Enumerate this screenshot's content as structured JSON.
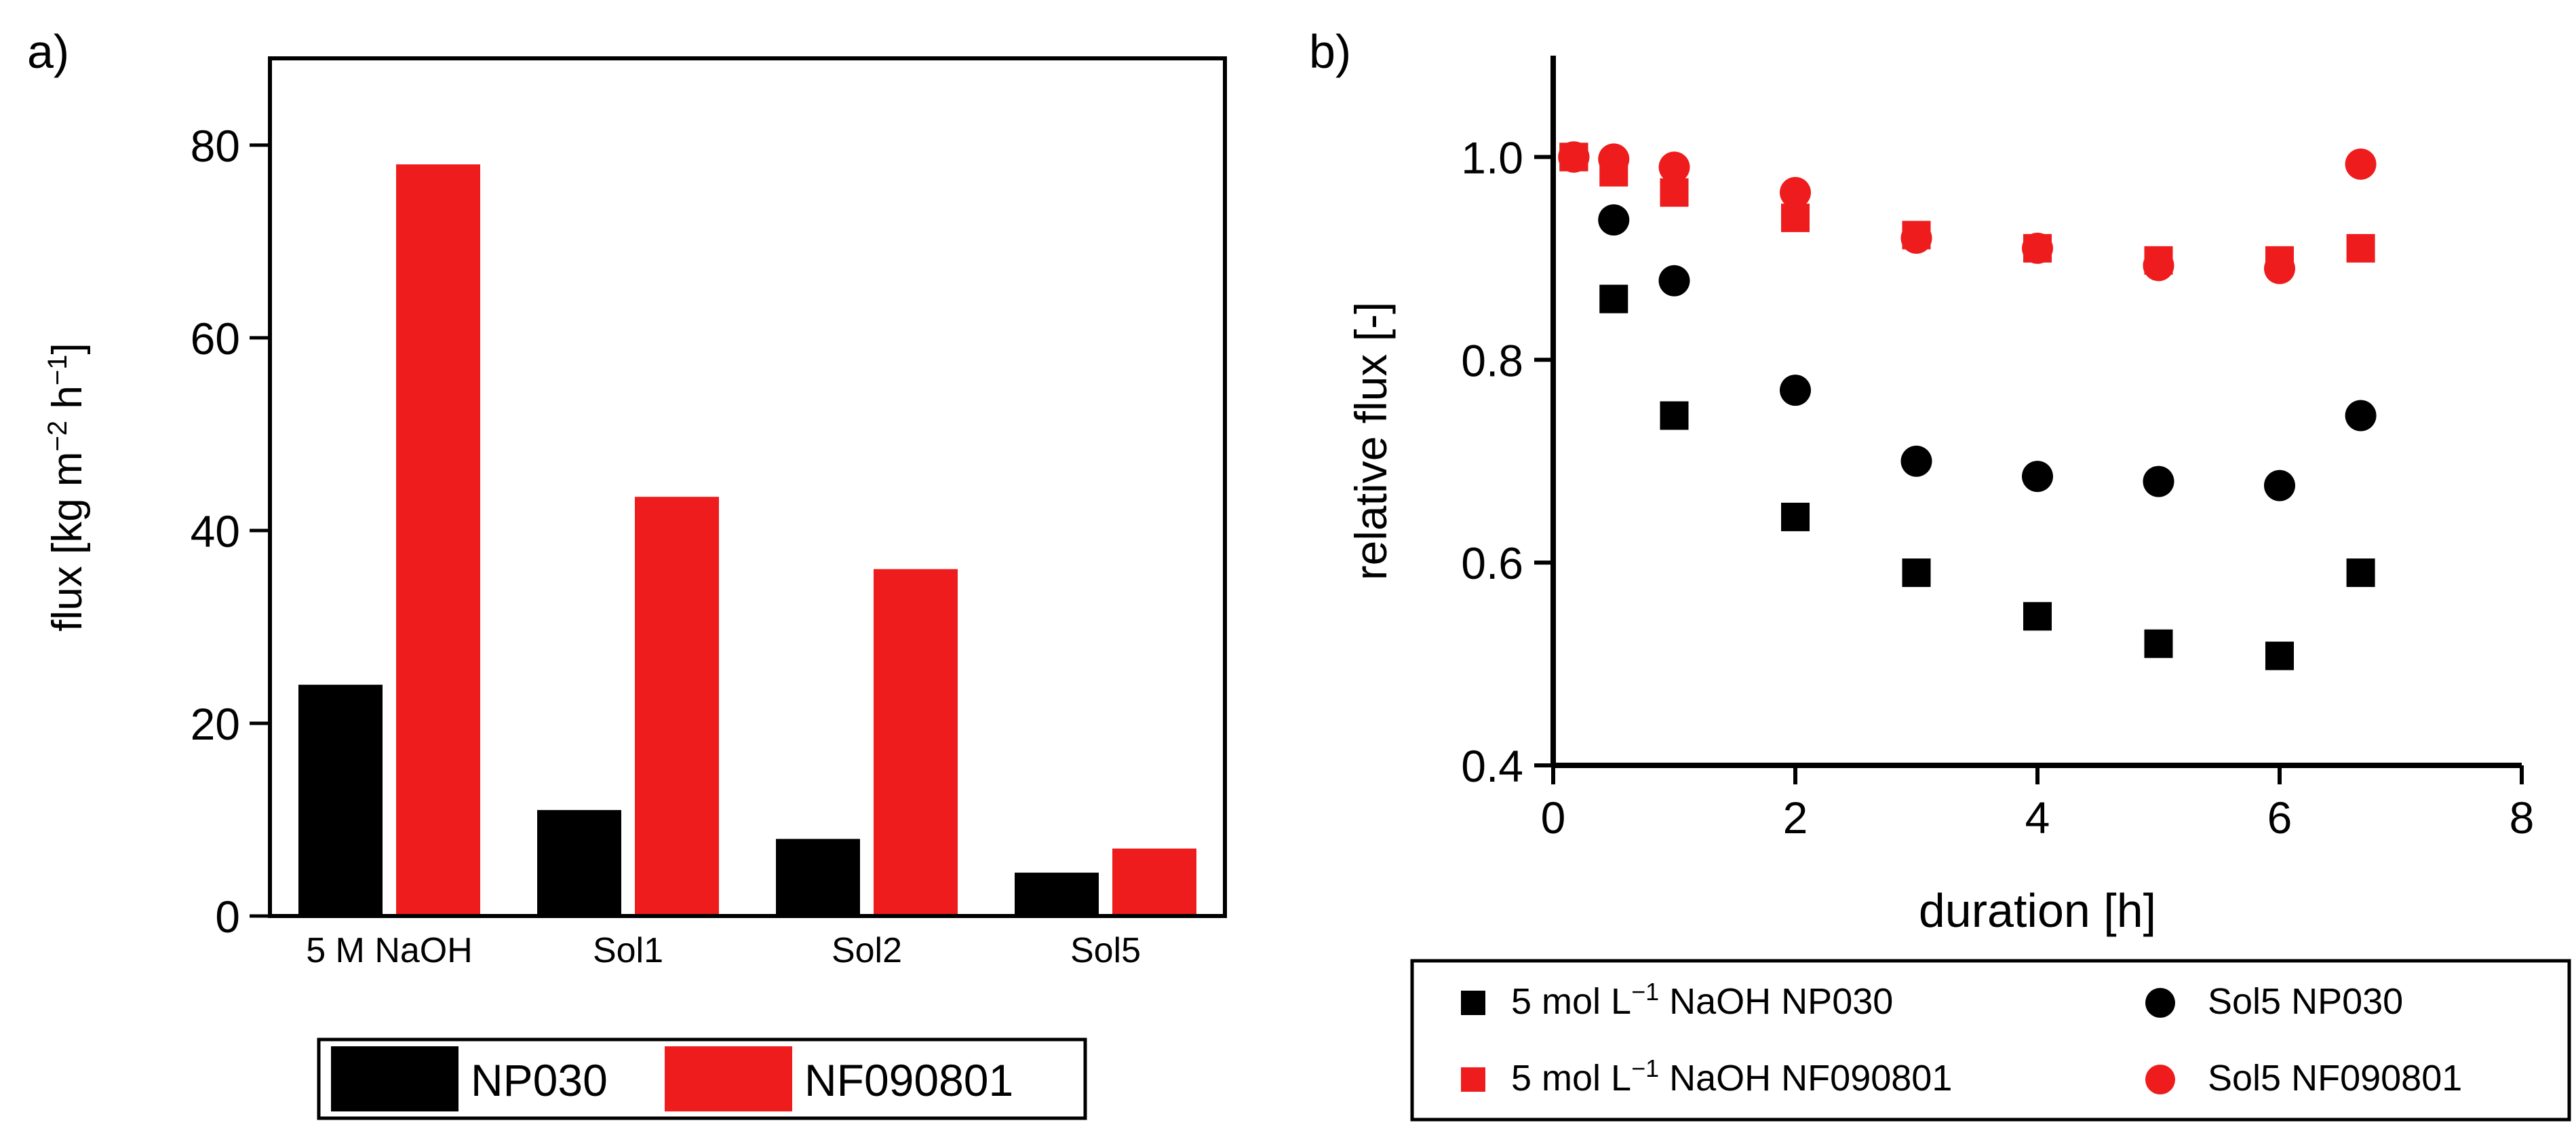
{
  "chart_data": [
    {
      "panel": "a)",
      "type": "bar",
      "categories": [
        "5 M NaOH",
        "Sol1",
        "Sol2",
        "Sol5"
      ],
      "series": [
        {
          "name": "NP030",
          "color": "#000000",
          "values": [
            24,
            11,
            8,
            4.5
          ]
        },
        {
          "name": "NF090801",
          "color": "#ee1c1c",
          "values": [
            78,
            43.5,
            36,
            7
          ]
        }
      ],
      "ylabel_main": "flux [kg m",
      "ylabel_sup1": "−2",
      "ylabel_mid": " h",
      "ylabel_sup2": "−1",
      "ylabel_end": "]",
      "ylim": [
        0,
        89
      ],
      "yticks": [
        0,
        20,
        40,
        60,
        80
      ],
      "legend_position": "bottom"
    },
    {
      "panel": "b)",
      "type": "scatter",
      "xlabel": "duration [h]",
      "ylabel": "relative flux [-]",
      "xlim": [
        0,
        8
      ],
      "ylim": [
        0.4,
        1.1
      ],
      "xticks": [
        0,
        2,
        4,
        6,
        8
      ],
      "yticks": [
        "0.4",
        "0.6",
        "0.8",
        "1.0"
      ],
      "series": [
        {
          "legend_pre": "5 mol L",
          "legend_sup": "−1",
          "legend_post": " NaOH NP030",
          "marker": "square",
          "color": "#000000",
          "x": [
            0.17,
            0.5,
            1,
            2,
            3,
            4,
            5,
            6,
            6.67
          ],
          "y": [
            1.0,
            0.86,
            0.745,
            0.645,
            0.59,
            0.547,
            0.52,
            0.508,
            0.59
          ]
        },
        {
          "legend_pre": "Sol5 NP030",
          "legend_sup": "",
          "legend_post": "",
          "marker": "circle",
          "color": "#000000",
          "x": [
            0.17,
            0.5,
            1,
            2,
            3,
            4,
            5,
            6,
            6.67
          ],
          "y": [
            1.0,
            0.938,
            0.878,
            0.77,
            0.7,
            0.685,
            0.68,
            0.676,
            0.745
          ]
        },
        {
          "legend_pre": "5 mol L",
          "legend_sup": "−1",
          "legend_post": " NaOH NF090801",
          "marker": "square",
          "color": "#ee1c1c",
          "x": [
            0.17,
            0.5,
            1,
            2,
            3,
            4,
            5,
            6,
            6.67
          ],
          "y": [
            1.0,
            0.985,
            0.965,
            0.94,
            0.923,
            0.91,
            0.898,
            0.898,
            0.91
          ]
        },
        {
          "legend_pre": "Sol5 NF090801",
          "legend_sup": "",
          "legend_post": "",
          "marker": "circle",
          "color": "#ee1c1c",
          "x": [
            0.17,
            0.5,
            1,
            2,
            3,
            4,
            5,
            6,
            6.67
          ],
          "y": [
            1.0,
            0.998,
            0.99,
            0.965,
            0.92,
            0.91,
            0.893,
            0.89,
            0.993
          ]
        }
      ],
      "legend_position": "bottom"
    }
  ]
}
